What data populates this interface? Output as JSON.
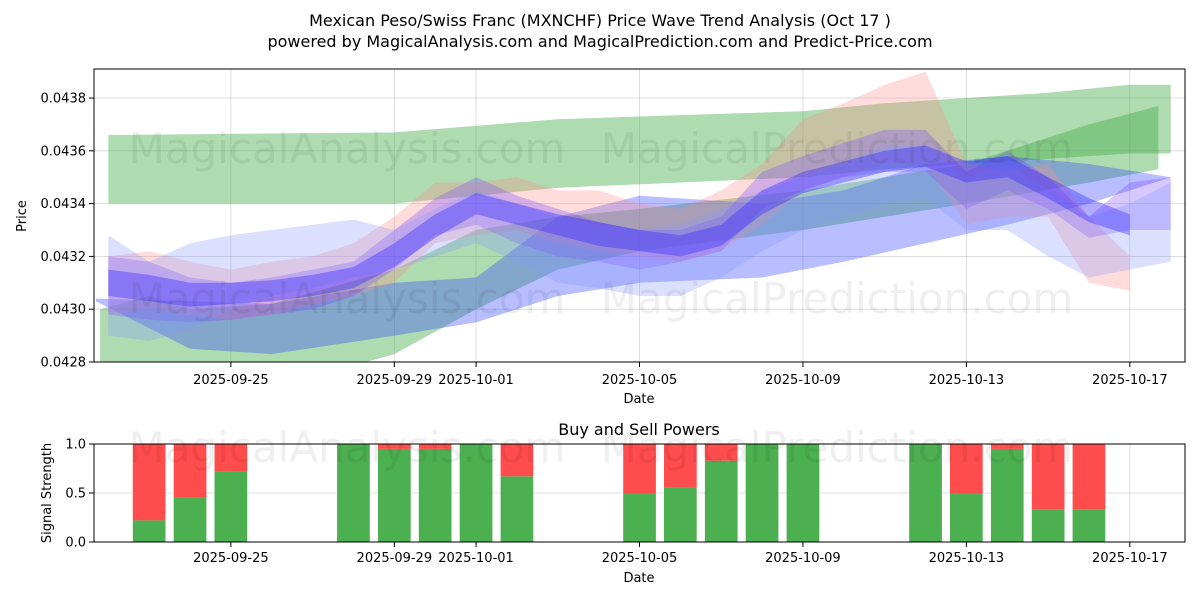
{
  "header": {
    "title_line1": "Mexican Peso/Swiss Franc (MXNCHF) Price Wave Trend Analysis (Oct 17 )",
    "title_line2": "powered by MagicalAnalysis.com and MagicalPrediction.com and Predict-Price.com"
  },
  "watermarks": [
    "MagicalAnalysis.com",
    "MagicalPrediction.com"
  ],
  "chart_data": [
    {
      "type": "area",
      "title": "",
      "xlabel": "Date",
      "ylabel": "Price",
      "ylim": [
        0.0428,
        0.04391
      ],
      "yticks": [
        0.0428,
        0.043,
        0.0432,
        0.0434,
        0.0436,
        0.0438
      ],
      "ytick_labels": [
        "0.0428",
        "0.0430",
        "0.0432",
        "0.0434",
        "0.0436",
        "0.0438"
      ],
      "x_start": "2025-09-22",
      "x_range_days": [
        -0.35,
        26.35
      ],
      "xticks_day": [
        3,
        7,
        9,
        13,
        17,
        21,
        25
      ],
      "xtick_labels": [
        "2025-09-25",
        "2025-09-29",
        "2025-10-01",
        "2025-10-05",
        "2025-10-09",
        "2025-10-13",
        "2025-10-17"
      ],
      "grid": true,
      "series": [
        {
          "name": "long-term green band",
          "color": "#4caf50",
          "opacity": 0.45,
          "x": [
            0,
            7,
            11,
            17,
            19,
            23,
            25,
            26
          ],
          "upper": [
            0.04366,
            0.04367,
            0.04372,
            0.04375,
            0.04378,
            0.04382,
            0.04385,
            0.04385
          ],
          "lower": [
            0.0434,
            0.0434,
            0.04346,
            0.0435,
            0.04353,
            0.04357,
            0.04359,
            0.04359
          ]
        },
        {
          "name": "rising green band",
          "color": "#4caf50",
          "opacity": 0.45,
          "x": [
            -0.2,
            1,
            2,
            4,
            7,
            9,
            11,
            13,
            17,
            21,
            24,
            25.7
          ],
          "upper": [
            0.043,
            0.04305,
            0.043,
            0.04302,
            0.04315,
            0.0433,
            0.04335,
            0.04338,
            0.04345,
            0.04355,
            0.0437,
            0.04377
          ],
          "lower": [
            0.04278,
            0.0427,
            0.04268,
            0.0427,
            0.04283,
            0.043,
            0.04315,
            0.04322,
            0.0433,
            0.0434,
            0.04348,
            0.04353
          ]
        },
        {
          "name": "blue trend band",
          "color": "#3344ff",
          "opacity": 0.35,
          "x": [
            -0.3,
            2,
            4,
            7,
            9,
            11,
            13,
            16,
            18,
            20,
            22,
            24,
            26
          ],
          "upper": [
            0.04304,
            0.04303,
            0.04302,
            0.0431,
            0.04312,
            0.04335,
            0.04343,
            0.0434,
            0.04345,
            0.04355,
            0.04358,
            0.04355,
            0.0435
          ],
          "lower": [
            0.04303,
            0.04285,
            0.04283,
            0.0429,
            0.04295,
            0.04305,
            0.0431,
            0.04312,
            0.04318,
            0.04325,
            0.04332,
            0.0434,
            0.0435
          ]
        },
        {
          "name": "pink price wave",
          "color": "#ff8a8a",
          "opacity": 0.3,
          "x": [
            0,
            1,
            2,
            3,
            4,
            5,
            6,
            7,
            8,
            9,
            10,
            11,
            12,
            13,
            14,
            15,
            16,
            17,
            18,
            19,
            20,
            21,
            22,
            23,
            24,
            25
          ],
          "upper": [
            0.0432,
            0.04322,
            0.04318,
            0.04315,
            0.04318,
            0.0432,
            0.04325,
            0.04335,
            0.04348,
            0.04348,
            0.0435,
            0.04345,
            0.04345,
            0.0434,
            0.04338,
            0.04345,
            0.04355,
            0.04372,
            0.04378,
            0.04385,
            0.0439,
            0.04355,
            0.04352,
            0.04355,
            0.04335,
            0.0432
          ],
          "lower": [
            0.04298,
            0.043,
            0.04298,
            0.04296,
            0.04298,
            0.04302,
            0.04305,
            0.0431,
            0.04325,
            0.04328,
            0.0433,
            0.04325,
            0.04322,
            0.0432,
            0.04318,
            0.04322,
            0.04332,
            0.04345,
            0.0435,
            0.04355,
            0.04355,
            0.04332,
            0.04335,
            0.04335,
            0.0431,
            0.04307
          ]
        },
        {
          "name": "purple price wave",
          "color": "#7744ff",
          "opacity": 0.3,
          "x": [
            0,
            1,
            2,
            3,
            4,
            5,
            6,
            7,
            8,
            9,
            10,
            11,
            12,
            13,
            14,
            15,
            16,
            17,
            18,
            19,
            20,
            21,
            22,
            23,
            24,
            25,
            26
          ],
          "upper": [
            0.0432,
            0.04318,
            0.04312,
            0.0431,
            0.04312,
            0.04315,
            0.04318,
            0.0433,
            0.04342,
            0.0435,
            0.04343,
            0.04338,
            0.04333,
            0.0433,
            0.0433,
            0.04335,
            0.04352,
            0.04358,
            0.04363,
            0.04368,
            0.04368,
            0.04352,
            0.0436,
            0.0435,
            0.04335,
            0.04348,
            0.0435
          ],
          "lower": [
            0.04298,
            0.04296,
            0.04295,
            0.04296,
            0.04298,
            0.043,
            0.04305,
            0.04315,
            0.04328,
            0.04332,
            0.04325,
            0.0432,
            0.04318,
            0.04315,
            0.04318,
            0.04322,
            0.04338,
            0.04345,
            0.0435,
            0.04352,
            0.04352,
            0.04338,
            0.04345,
            0.04338,
            0.04327,
            0.0433,
            0.0433
          ]
        },
        {
          "name": "light blue wave",
          "color": "#8899ff",
          "opacity": 0.3,
          "x": [
            0,
            1,
            2,
            3,
            4,
            5,
            6,
            7,
            8,
            9,
            10,
            11,
            12,
            13,
            14,
            15,
            16,
            17,
            18,
            19,
            20,
            21,
            22,
            23,
            24,
            25,
            26
          ],
          "upper": [
            0.04328,
            0.04318,
            0.04325,
            0.04328,
            0.0433,
            0.04332,
            0.04334,
            0.0433,
            0.04338,
            0.04345,
            0.0434,
            0.04335,
            0.04332,
            0.0433,
            0.04332,
            0.04338,
            0.04345,
            0.0435,
            0.04355,
            0.04362,
            0.04362,
            0.0435,
            0.04355,
            0.04345,
            0.04335,
            0.0434,
            0.04348
          ],
          "lower": [
            0.0429,
            0.04288,
            0.04292,
            0.043,
            0.04305,
            0.04308,
            0.04312,
            0.04315,
            0.0432,
            0.04325,
            0.04318,
            0.0431,
            0.04308,
            0.04305,
            0.04305,
            0.04312,
            0.04322,
            0.0433,
            0.04335,
            0.0434,
            0.04342,
            0.0433,
            0.0433,
            0.0432,
            0.04312,
            0.04315,
            0.04318
          ]
        },
        {
          "name": "dark blue core wave",
          "color": "#3a2cff",
          "opacity": 0.4,
          "x": [
            0,
            1,
            2,
            3,
            4,
            5,
            6,
            7,
            8,
            9,
            10,
            11,
            12,
            13,
            14,
            15,
            16,
            17,
            18,
            19,
            20,
            21,
            22,
            23,
            24,
            25
          ],
          "upper": [
            0.04315,
            0.04313,
            0.0431,
            0.0431,
            0.04311,
            0.04313,
            0.04316,
            0.04325,
            0.04336,
            0.04344,
            0.0434,
            0.04336,
            0.04333,
            0.0433,
            0.04328,
            0.04332,
            0.04345,
            0.04352,
            0.04356,
            0.0436,
            0.04362,
            0.04356,
            0.04358,
            0.0435,
            0.04342,
            0.04336
          ],
          "lower": [
            0.04305,
            0.04303,
            0.04301,
            0.04302,
            0.04303,
            0.04305,
            0.04308,
            0.04316,
            0.04327,
            0.04336,
            0.04332,
            0.04328,
            0.04324,
            0.04322,
            0.0432,
            0.04324,
            0.04336,
            0.04344,
            0.04348,
            0.04352,
            0.04354,
            0.04348,
            0.0435,
            0.04342,
            0.04333,
            0.04328
          ]
        }
      ]
    },
    {
      "type": "bar",
      "title": "Buy and Sell Powers",
      "xlabel": "Date",
      "ylabel": "Signal Strength",
      "ylim": [
        0,
        1
      ],
      "yticks": [
        0,
        0.5,
        1
      ],
      "ytick_labels": [
        "0.0",
        "0.5",
        "1.0"
      ],
      "x_start": "2025-09-22",
      "x_range_days": [
        -0.35,
        26.35
      ],
      "xticks_day": [
        3,
        7,
        9,
        13,
        17,
        21,
        25
      ],
      "xtick_labels": [
        "2025-09-25",
        "2025-09-29",
        "2025-10-01",
        "2025-10-05",
        "2025-10-09",
        "2025-10-13",
        "2025-10-17"
      ],
      "series": [
        {
          "name": "Buy",
          "color": "#4caf50"
        },
        {
          "name": "Sell",
          "color": "#ff4c4c"
        }
      ],
      "bars": [
        {
          "day": 1,
          "buy": 0.22
        },
        {
          "day": 2,
          "buy": 0.45
        },
        {
          "day": 3,
          "buy": 0.72
        },
        {
          "day": 6,
          "buy": 1.0
        },
        {
          "day": 7,
          "buy": 0.95
        },
        {
          "day": 8,
          "buy": 0.95
        },
        {
          "day": 9,
          "buy": 1.0
        },
        {
          "day": 10,
          "buy": 0.67
        },
        {
          "day": 13,
          "buy": 0.5
        },
        {
          "day": 14,
          "buy": 0.56
        },
        {
          "day": 15,
          "buy": 0.83
        },
        {
          "day": 16,
          "buy": 1.0
        },
        {
          "day": 17,
          "buy": 1.0
        },
        {
          "day": 20,
          "buy": 1.0
        },
        {
          "day": 21,
          "buy": 0.5
        },
        {
          "day": 22,
          "buy": 0.95
        },
        {
          "day": 23,
          "buy": 0.33
        },
        {
          "day": 24,
          "buy": 0.33
        }
      ]
    }
  ]
}
